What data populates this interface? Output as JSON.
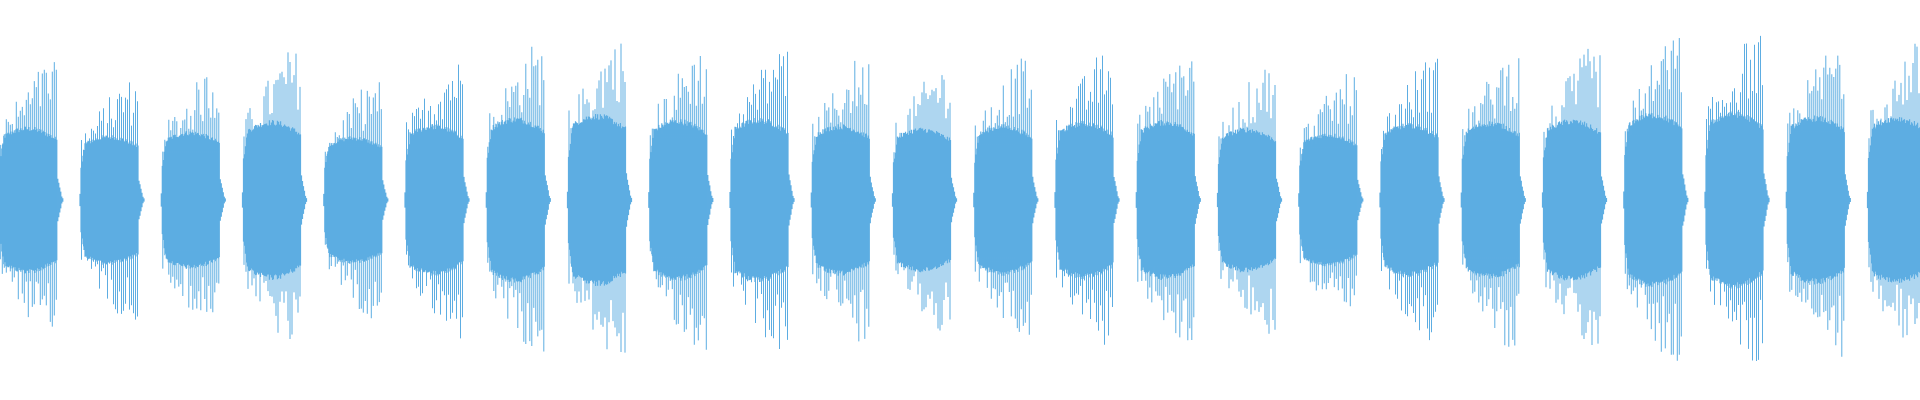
{
  "chart_data": {
    "type": "waveform",
    "color": "#5DADE2",
    "background": "#FFFFFF",
    "grid": false,
    "burst_count": 24,
    "burst_peak_amplitudes": [
      0.69,
      0.61,
      0.65,
      0.75,
      0.6,
      0.71,
      0.78,
      0.81,
      0.76,
      0.77,
      0.71,
      0.68,
      0.71,
      0.74,
      0.75,
      0.68,
      0.63,
      0.72,
      0.74,
      0.76,
      0.82,
      0.83,
      0.79,
      0.79
    ]
  }
}
